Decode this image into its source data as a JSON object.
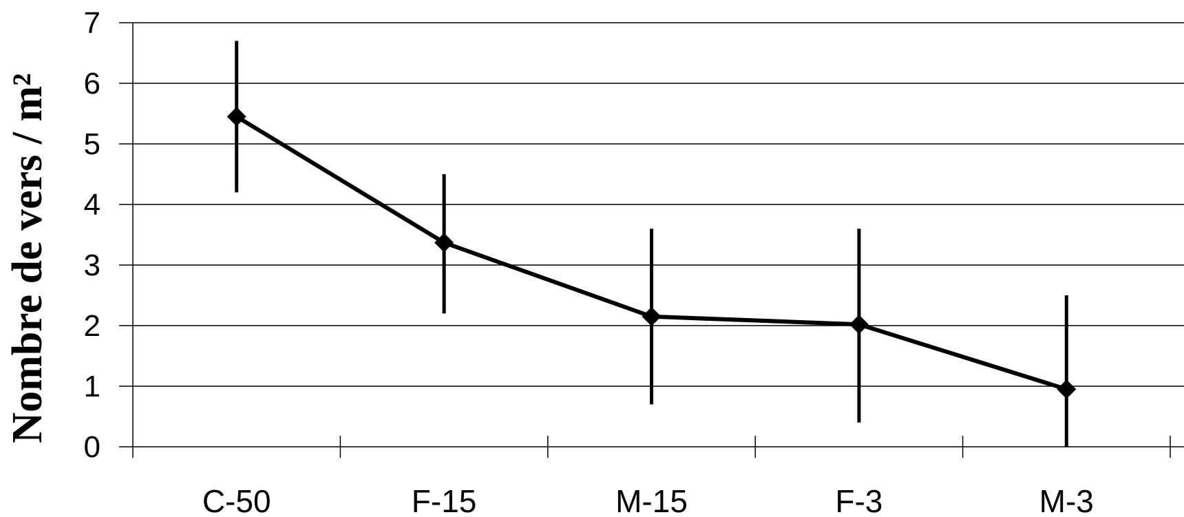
{
  "chart_data": {
    "type": "line",
    "categories": [
      "C-50",
      "F-15",
      "M-15",
      "F-3",
      "M-3"
    ],
    "series": [
      {
        "values": [
          5.45,
          3.37,
          2.15,
          2.02,
          0.95
        ],
        "error_low": [
          4.2,
          2.2,
          0.7,
          0.4,
          0.0
        ],
        "error_high": [
          6.7,
          4.5,
          3.6,
          3.6,
          2.5
        ]
      }
    ],
    "ylabel": "Nombre de vers / m²",
    "xlabel": "",
    "ylim": [
      0,
      7
    ],
    "yticks": [
      "0",
      "1",
      "2",
      "3",
      "4",
      "5",
      "6",
      "7"
    ],
    "grid": true,
    "marker": "diamond",
    "line_color": "#000000",
    "grid_color": "#000000"
  }
}
